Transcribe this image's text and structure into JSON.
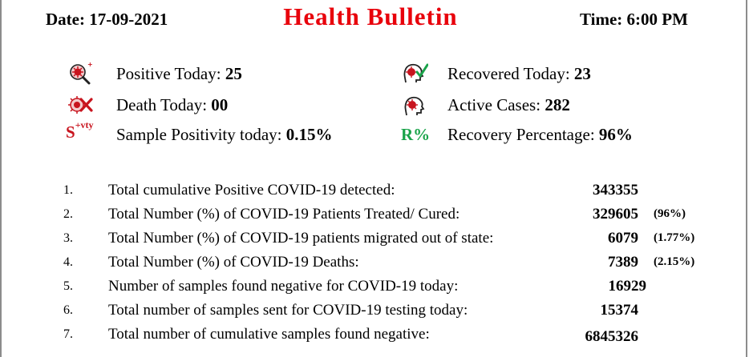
{
  "header": {
    "date": "Date: 17-09-2021",
    "title": "Health Bulletin",
    "time": "Time: 6:00 PM"
  },
  "stats": {
    "positive_today": {
      "label": "Positive Today: ",
      "value": "25",
      "icon": "virus-search-icon"
    },
    "recovered_today": {
      "label": "Recovered Today: ",
      "value": "23",
      "icon": "recovered-head-icon"
    },
    "death_today": {
      "label": "Death Today: ",
      "value": "00",
      "icon": "virus-cross-icon"
    },
    "active_cases": {
      "label": "Active Cases: ",
      "value": "282",
      "icon": "virus-head-icon"
    },
    "sample_positivity": {
      "label": "Sample Positivity today:  ",
      "value": "0.15%",
      "icon_text": "S",
      "icon_sup": "+vty"
    },
    "recovery_percentage": {
      "label": "Recovery Percentage:  ",
      "value": "96%",
      "icon_text": "R%"
    }
  },
  "colors": {
    "title": "#e8000b",
    "icon_red": "#c8141e",
    "icon_green": "#1aa34a"
  },
  "table": {
    "rows": [
      {
        "num": "1.",
        "label": "Total cumulative Positive COVID-19 detected:",
        "value": "343355",
        "pct": ""
      },
      {
        "num": "2.",
        "label": "Total Number (%) of COVID-19 Patients Treated/ Cured:",
        "value": "329605",
        "pct": "(96%)"
      },
      {
        "num": "3.",
        "label": "Total Number (%) of COVID-19 patients migrated out of state:",
        "value": "6079",
        "pct": "(1.77%)"
      },
      {
        "num": "4.",
        "label": "Total Number (%) of COVID-19 Deaths:",
        "value": "7389",
        "pct": "(2.15%)"
      },
      {
        "num": "5.",
        "label": "Number of samples found negative for COVID-19 today:",
        "value": "16929",
        "pct": ""
      },
      {
        "num": "6.",
        "label": "Total number of samples sent for COVID-19 testing today:",
        "value": "15374",
        "pct": ""
      },
      {
        "num": "7.",
        "label": "Total number of cumulative samples found negative:",
        "value": "6845326",
        "pct": ""
      }
    ]
  }
}
